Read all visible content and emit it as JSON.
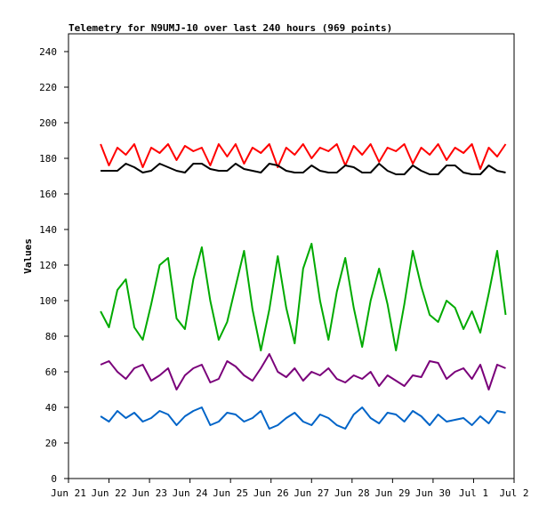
{
  "chart_data": {
    "type": "line",
    "title": "Telemetry for N9UMJ-10 over last 240 hours (969 points)",
    "ylabel": "Values",
    "xlabel": "",
    "ylim": [
      0,
      250
    ],
    "yticks": [
      0,
      20,
      40,
      60,
      80,
      100,
      120,
      140,
      160,
      180,
      200,
      220,
      240
    ],
    "xlim": [
      "2021-06-21",
      "2021-07-02"
    ],
    "xticks": [
      "Jun 21",
      "Jun 22",
      "Jun 23",
      "Jun 24",
      "Jun 25",
      "Jun 26",
      "Jun 27",
      "Jun 28",
      "Jun 29",
      "Jun 30",
      "Jul 1",
      "Jul 2"
    ],
    "x": [
      "2021-06-21T19:00",
      "2021-06-22T00:00",
      "2021-06-22T05:00",
      "2021-06-22T10:00",
      "2021-06-22T15:00",
      "2021-06-22T20:00",
      "2021-06-23T01:00",
      "2021-06-23T06:00",
      "2021-06-23T11:00",
      "2021-06-23T16:00",
      "2021-06-23T21:00",
      "2021-06-24T02:00",
      "2021-06-24T07:00",
      "2021-06-24T12:00",
      "2021-06-24T17:00",
      "2021-06-24T22:00",
      "2021-06-25T03:00",
      "2021-06-25T08:00",
      "2021-06-25T13:00",
      "2021-06-25T18:00",
      "2021-06-25T23:00",
      "2021-06-26T04:00",
      "2021-06-26T09:00",
      "2021-06-26T14:00",
      "2021-06-26T19:00",
      "2021-06-27T00:00",
      "2021-06-27T05:00",
      "2021-06-27T10:00",
      "2021-06-27T15:00",
      "2021-06-27T20:00",
      "2021-06-28T01:00",
      "2021-06-28T06:00",
      "2021-06-28T11:00",
      "2021-06-28T16:00",
      "2021-06-28T21:00",
      "2021-06-29T02:00",
      "2021-06-29T07:00",
      "2021-06-29T12:00",
      "2021-06-29T17:00",
      "2021-06-29T22:00",
      "2021-06-30T03:00",
      "2021-06-30T08:00",
      "2021-06-30T13:00",
      "2021-06-30T18:00",
      "2021-06-30T23:00",
      "2021-07-01T04:00",
      "2021-07-01T09:00",
      "2021-07-01T14:00",
      "2021-07-01T19:00"
    ],
    "series": [
      {
        "color": "#ff0000",
        "values": [
          188,
          176,
          186,
          182,
          188,
          175,
          186,
          183,
          188,
          179,
          187,
          184,
          186,
          176,
          188,
          181,
          188,
          177,
          186,
          183,
          188,
          175,
          186,
          182,
          188,
          180,
          186,
          184,
          188,
          176,
          187,
          182,
          188,
          178,
          186,
          184,
          188,
          177,
          186,
          182,
          188,
          179,
          186,
          183,
          188,
          174,
          186,
          181,
          188
        ]
      },
      {
        "color": "#000000",
        "values": [
          173,
          173,
          173,
          177,
          175,
          172,
          173,
          177,
          175,
          173,
          172,
          177,
          177,
          174,
          173,
          173,
          177,
          174,
          173,
          172,
          177,
          176,
          173,
          172,
          172,
          176,
          173,
          172,
          172,
          176,
          175,
          172,
          172,
          177,
          173,
          171,
          171,
          176,
          173,
          171,
          171,
          176,
          176,
          172,
          171,
          171,
          176,
          173,
          172
        ]
      },
      {
        "color": "#00aa00",
        "values": [
          94,
          85,
          106,
          112,
          85,
          78,
          98,
          120,
          124,
          90,
          84,
          112,
          130,
          100,
          78,
          88,
          108,
          128,
          95,
          72,
          95,
          125,
          96,
          76,
          118,
          132,
          100,
          78,
          105,
          124,
          96,
          74,
          100,
          118,
          98,
          72,
          98,
          128,
          108,
          92,
          88,
          100,
          96,
          84,
          94,
          82,
          104,
          128,
          92
        ]
      },
      {
        "color": "#7a007a",
        "values": [
          64,
          66,
          60,
          56,
          62,
          64,
          55,
          58,
          62,
          50,
          58,
          62,
          64,
          54,
          56,
          66,
          63,
          58,
          55,
          62,
          70,
          60,
          57,
          62,
          55,
          60,
          58,
          62,
          56,
          54,
          58,
          56,
          60,
          52,
          58,
          55,
          52,
          58,
          57,
          66,
          65,
          56,
          60,
          62,
          56,
          64,
          50,
          64,
          62
        ]
      },
      {
        "color": "#0064c8",
        "values": [
          35,
          32,
          38,
          34,
          37,
          32,
          34,
          38,
          36,
          30,
          35,
          38,
          40,
          30,
          32,
          37,
          36,
          32,
          34,
          38,
          28,
          30,
          34,
          37,
          32,
          30,
          36,
          34,
          30,
          28,
          36,
          40,
          34,
          31,
          37,
          36,
          32,
          38,
          35,
          30,
          36,
          32,
          33,
          34,
          30,
          35,
          31,
          38,
          37
        ]
      }
    ]
  }
}
